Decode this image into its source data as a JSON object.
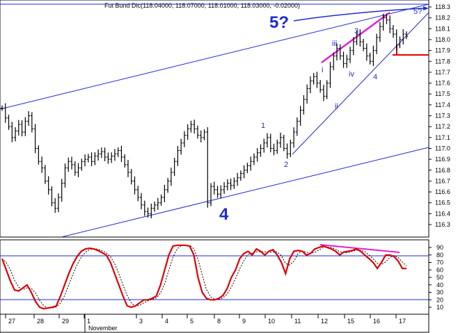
{
  "chart_data": {
    "type": "ohlc",
    "title": "Fut Bund Dic(118.04000, 118.07000, 118.01000, 118.03000, -0.02000)",
    "price_ylim": [
      116.2,
      118.35
    ],
    "price_ticks": [
      "118.3",
      "118.2",
      "118.1",
      "118.0",
      "117.9",
      "117.8",
      "117.7",
      "117.6",
      "117.5",
      "117.4",
      "117.3",
      "117.2",
      "117.1",
      "117.0",
      "116.9",
      "116.8",
      "116.7",
      "116.6",
      "116.5",
      "116.4",
      "116.3"
    ],
    "x_labels": [
      "27",
      "28",
      "29",
      "1",
      "3",
      "4",
      "5",
      "8",
      "9",
      "10",
      "11",
      "12",
      "15",
      "16",
      "17"
    ],
    "x_month_label": "November",
    "price_series": [
      117.37,
      117.28,
      117.2,
      117.1,
      117.16,
      117.22,
      117.15,
      117.25,
      117.3,
      117.18,
      117.0,
      116.88,
      116.82,
      116.7,
      116.62,
      116.5,
      116.45,
      116.55,
      116.68,
      116.82,
      116.88,
      116.85,
      116.78,
      116.82,
      116.88,
      116.9,
      116.92,
      116.88,
      116.93,
      116.95,
      116.97,
      116.92,
      116.9,
      116.93,
      116.95,
      116.98,
      116.92,
      116.85,
      116.78,
      116.7,
      116.62,
      116.55,
      116.48,
      116.42,
      116.4,
      116.45,
      116.48,
      116.5,
      116.55,
      116.62,
      116.7,
      116.78,
      116.88,
      116.98,
      117.05,
      117.12,
      117.18,
      117.22,
      117.18,
      117.12,
      117.1,
      117.15,
      116.5,
      116.65,
      116.62,
      116.58,
      116.62,
      116.65,
      116.68,
      116.66,
      116.7,
      116.73,
      116.77,
      116.8,
      116.84,
      116.88,
      116.92,
      116.96,
      117.0,
      117.05,
      117.1,
      117.0,
      116.98,
      117.05,
      117.1,
      117.0,
      116.95,
      117.05,
      117.15,
      117.25,
      117.35,
      117.45,
      117.55,
      117.62,
      117.66,
      117.6,
      117.54,
      117.48,
      117.6,
      117.75,
      117.85,
      117.92,
      117.85,
      117.78,
      117.82,
      117.9,
      117.98,
      118.05,
      117.98,
      117.92,
      117.85,
      117.8,
      117.9,
      118.02,
      118.12,
      118.2,
      118.18,
      118.1,
      118.05,
      117.95,
      118.0,
      118.05,
      118.03
    ],
    "stoch_ylim": [
      0,
      100
    ],
    "stoch_ticks": [
      "90",
      "80",
      "70",
      "60",
      "50",
      "40",
      "30",
      "20",
      "10"
    ],
    "stoch_levels": [
      80,
      20
    ],
    "stoch_k": [
      75,
      60,
      45,
      33,
      32,
      36,
      40,
      30,
      18,
      10,
      8,
      9,
      10,
      12,
      25,
      40,
      55,
      68,
      78,
      85,
      88,
      89,
      88,
      86,
      83,
      80,
      70,
      55,
      40,
      25,
      12,
      10,
      12,
      16,
      20,
      20,
      22,
      25,
      40,
      60,
      80,
      92,
      93,
      93,
      93,
      92,
      80,
      50,
      30,
      22,
      20,
      20,
      22,
      26,
      35,
      50,
      60,
      75,
      82,
      85,
      80,
      88,
      85,
      80,
      85,
      87,
      80,
      70,
      55,
      75,
      85,
      86,
      85,
      80,
      82,
      88,
      90,
      92,
      90,
      88,
      85,
      80,
      84,
      85,
      86,
      88,
      85,
      80,
      75,
      70,
      62,
      70,
      80,
      80,
      78,
      72,
      62,
      62
    ],
    "annotations": [
      "5?",
      "5?",
      "3",
      "iii",
      "i",
      "ii",
      "iv",
      "4",
      "1",
      "2",
      "4"
    ]
  }
}
